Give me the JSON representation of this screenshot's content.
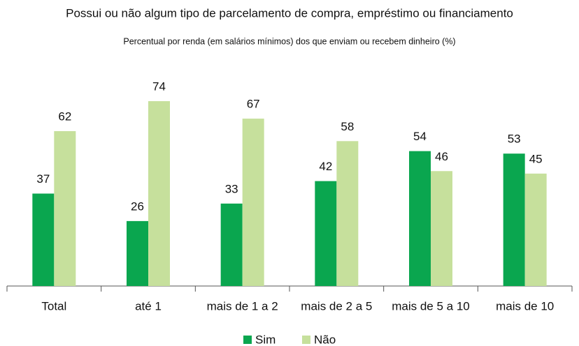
{
  "chart_data": {
    "type": "bar",
    "title": "Possui ou não algum tipo de parcelamento de compra, empréstimo ou financiamento",
    "subtitle": "Percentual por renda (em salários mínimos) dos que enviam ou recebem dinheiro (%)",
    "categories": [
      "Total",
      "até 1",
      "mais de 1 a 2",
      "mais de 2 a 5",
      "mais de 5 a 10",
      "mais de 10"
    ],
    "series": [
      {
        "name": "Sim",
        "color": "#0aa64f",
        "values": [
          37,
          26,
          33,
          42,
          54,
          53
        ]
      },
      {
        "name": "Não",
        "color": "#c6e09c",
        "values": [
          62,
          74,
          67,
          58,
          46,
          45
        ]
      }
    ],
    "legend": "bottom"
  }
}
